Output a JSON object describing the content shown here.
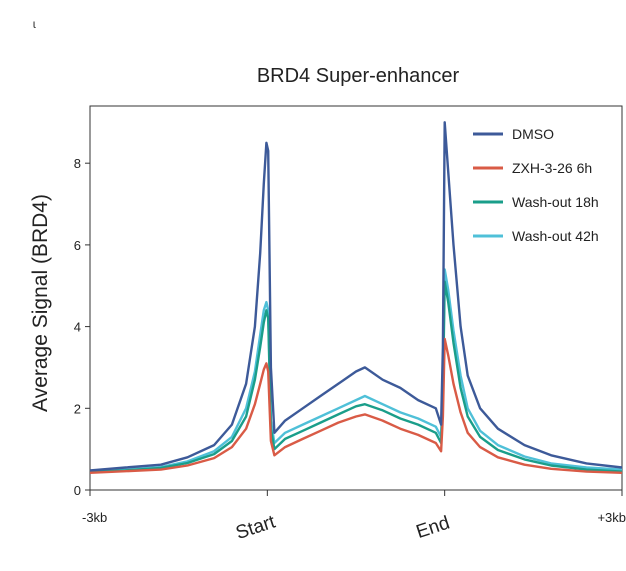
{
  "corner_mark": "ɩ",
  "chart_data": {
    "type": "line",
    "title": "BRD4 Super-enhancer",
    "ylabel": "Average Signal (BRD4)",
    "xlabel": "",
    "ylim": [
      0,
      9.4
    ],
    "yticks": [
      0,
      2,
      4,
      6,
      8
    ],
    "x_tick_labels": [
      {
        "label": "-3kb",
        "pos": 0
      },
      {
        "label": "Start",
        "pos": 1
      },
      {
        "label": "End",
        "pos": 2
      },
      {
        "label": "+3kb",
        "pos": 3
      }
    ],
    "x_domain": [
      0,
      3
    ],
    "legend_position": "top-right",
    "series": [
      {
        "name": "DMSO",
        "color": "#3d5a99",
        "points": [
          [
            0,
            0.48
          ],
          [
            0.2,
            0.55
          ],
          [
            0.4,
            0.62
          ],
          [
            0.55,
            0.8
          ],
          [
            0.7,
            1.1
          ],
          [
            0.8,
            1.6
          ],
          [
            0.88,
            2.6
          ],
          [
            0.93,
            4.0
          ],
          [
            0.96,
            5.8
          ],
          [
            0.98,
            7.5
          ],
          [
            0.995,
            8.5
          ],
          [
            1.005,
            8.3
          ],
          [
            1.02,
            3.0
          ],
          [
            1.04,
            1.4
          ],
          [
            1.1,
            1.7
          ],
          [
            1.2,
            2.0
          ],
          [
            1.3,
            2.3
          ],
          [
            1.4,
            2.6
          ],
          [
            1.5,
            2.9
          ],
          [
            1.55,
            3.0
          ],
          [
            1.65,
            2.7
          ],
          [
            1.75,
            2.5
          ],
          [
            1.85,
            2.2
          ],
          [
            1.95,
            2.0
          ],
          [
            1.98,
            1.6
          ],
          [
            1.99,
            3.5
          ],
          [
            2.0,
            9.0
          ],
          [
            2.02,
            7.8
          ],
          [
            2.05,
            6.0
          ],
          [
            2.09,
            4.0
          ],
          [
            2.13,
            2.8
          ],
          [
            2.2,
            2.0
          ],
          [
            2.3,
            1.5
          ],
          [
            2.45,
            1.1
          ],
          [
            2.6,
            0.85
          ],
          [
            2.8,
            0.65
          ],
          [
            3.0,
            0.55
          ]
        ]
      },
      {
        "name": "ZXH-3-26 6h",
        "color": "#d95b46",
        "points": [
          [
            0,
            0.42
          ],
          [
            0.2,
            0.46
          ],
          [
            0.4,
            0.5
          ],
          [
            0.55,
            0.6
          ],
          [
            0.7,
            0.78
          ],
          [
            0.8,
            1.05
          ],
          [
            0.88,
            1.5
          ],
          [
            0.93,
            2.1
          ],
          [
            0.96,
            2.6
          ],
          [
            0.98,
            2.95
          ],
          [
            0.995,
            3.1
          ],
          [
            1.005,
            2.9
          ],
          [
            1.02,
            1.2
          ],
          [
            1.04,
            0.85
          ],
          [
            1.1,
            1.05
          ],
          [
            1.2,
            1.25
          ],
          [
            1.3,
            1.45
          ],
          [
            1.4,
            1.65
          ],
          [
            1.5,
            1.8
          ],
          [
            1.55,
            1.85
          ],
          [
            1.65,
            1.7
          ],
          [
            1.75,
            1.5
          ],
          [
            1.85,
            1.35
          ],
          [
            1.95,
            1.15
          ],
          [
            1.98,
            0.95
          ],
          [
            1.99,
            1.8
          ],
          [
            2.0,
            3.7
          ],
          [
            2.02,
            3.3
          ],
          [
            2.05,
            2.6
          ],
          [
            2.09,
            1.9
          ],
          [
            2.13,
            1.4
          ],
          [
            2.2,
            1.05
          ],
          [
            2.3,
            0.8
          ],
          [
            2.45,
            0.62
          ],
          [
            2.6,
            0.52
          ],
          [
            2.8,
            0.45
          ],
          [
            3.0,
            0.42
          ]
        ]
      },
      {
        "name": "Wash-out 18h",
        "color": "#1a9e8a",
        "points": [
          [
            0,
            0.44
          ],
          [
            0.2,
            0.48
          ],
          [
            0.4,
            0.54
          ],
          [
            0.55,
            0.66
          ],
          [
            0.7,
            0.88
          ],
          [
            0.8,
            1.2
          ],
          [
            0.88,
            1.8
          ],
          [
            0.93,
            2.7
          ],
          [
            0.96,
            3.5
          ],
          [
            0.98,
            4.1
          ],
          [
            0.995,
            4.4
          ],
          [
            1.005,
            4.2
          ],
          [
            1.02,
            1.5
          ],
          [
            1.04,
            1.0
          ],
          [
            1.1,
            1.25
          ],
          [
            1.2,
            1.45
          ],
          [
            1.3,
            1.65
          ],
          [
            1.4,
            1.85
          ],
          [
            1.5,
            2.05
          ],
          [
            1.55,
            2.1
          ],
          [
            1.65,
            1.95
          ],
          [
            1.75,
            1.75
          ],
          [
            1.85,
            1.6
          ],
          [
            1.95,
            1.4
          ],
          [
            1.98,
            1.15
          ],
          [
            1.99,
            2.3
          ],
          [
            2.0,
            5.1
          ],
          [
            2.02,
            4.6
          ],
          [
            2.05,
            3.6
          ],
          [
            2.09,
            2.5
          ],
          [
            2.13,
            1.8
          ],
          [
            2.2,
            1.3
          ],
          [
            2.3,
            0.98
          ],
          [
            2.45,
            0.75
          ],
          [
            2.6,
            0.6
          ],
          [
            2.8,
            0.5
          ],
          [
            3.0,
            0.45
          ]
        ]
      },
      {
        "name": "Wash-out 42h",
        "color": "#4fc0d8",
        "points": [
          [
            0,
            0.46
          ],
          [
            0.2,
            0.5
          ],
          [
            0.4,
            0.56
          ],
          [
            0.55,
            0.7
          ],
          [
            0.7,
            0.95
          ],
          [
            0.8,
            1.3
          ],
          [
            0.88,
            2.0
          ],
          [
            0.93,
            2.9
          ],
          [
            0.96,
            3.8
          ],
          [
            0.98,
            4.4
          ],
          [
            0.995,
            4.6
          ],
          [
            1.005,
            4.4
          ],
          [
            1.02,
            1.7
          ],
          [
            1.04,
            1.15
          ],
          [
            1.1,
            1.4
          ],
          [
            1.2,
            1.6
          ],
          [
            1.3,
            1.8
          ],
          [
            1.4,
            2.0
          ],
          [
            1.5,
            2.2
          ],
          [
            1.55,
            2.3
          ],
          [
            1.65,
            2.1
          ],
          [
            1.75,
            1.9
          ],
          [
            1.85,
            1.75
          ],
          [
            1.95,
            1.55
          ],
          [
            1.98,
            1.3
          ],
          [
            1.99,
            2.6
          ],
          [
            2.0,
            5.4
          ],
          [
            2.02,
            4.9
          ],
          [
            2.05,
            3.9
          ],
          [
            2.09,
            2.8
          ],
          [
            2.13,
            2.0
          ],
          [
            2.2,
            1.45
          ],
          [
            2.3,
            1.1
          ],
          [
            2.45,
            0.82
          ],
          [
            2.6,
            0.65
          ],
          [
            2.8,
            0.55
          ],
          [
            3.0,
            0.5
          ]
        ]
      }
    ]
  }
}
